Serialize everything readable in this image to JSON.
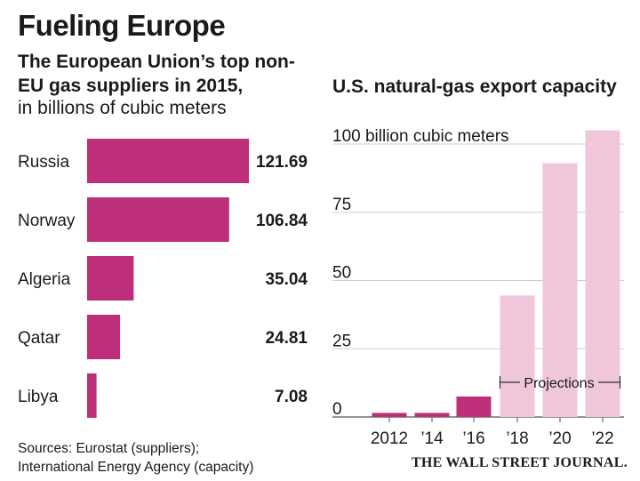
{
  "title": "Fueling Europe",
  "left_subtitle_bold": "The European Union’s top non-EU gas suppliers in 2015,",
  "left_subtitle_unit": "in billions of cubic meters",
  "right_subtitle": "U.S. natural-gas export capacity",
  "sources_line1": "Sources: Eurostat (suppliers);",
  "sources_line2": "International Energy Agency (capacity)",
  "credit": "THE WALL STREET JOURNAL.",
  "colors": {
    "supplier_bar": "#bd2f78",
    "capacity_actual": "#bd2f78",
    "capacity_projection": "#f0c6da"
  },
  "chart_data": [
    {
      "type": "bar",
      "orientation": "horizontal",
      "categories": [
        "Russia",
        "Norway",
        "Algeria",
        "Qatar",
        "Libya"
      ],
      "values": [
        121.69,
        106.84,
        35.04,
        24.81,
        7.08
      ],
      "value_labels": [
        "121.69",
        "106.84",
        "35.04",
        "24.81",
        "7.08"
      ],
      "unit": "billions of cubic meters"
    },
    {
      "type": "bar",
      "categories": [
        "2012",
        "’14",
        "’16",
        "’18",
        "’20",
        "’22"
      ],
      "values": [
        1.5,
        1.5,
        7.5,
        44.5,
        93,
        105
      ],
      "projection": [
        false,
        false,
        false,
        true,
        true,
        true
      ],
      "projection_label": "Projections",
      "ylim": [
        0,
        110
      ],
      "yticks": [
        0,
        25,
        50,
        75,
        100
      ],
      "ytick_labels": [
        "0",
        "25",
        "50",
        "75",
        "100 billion cubic meters"
      ],
      "grid": true
    }
  ]
}
